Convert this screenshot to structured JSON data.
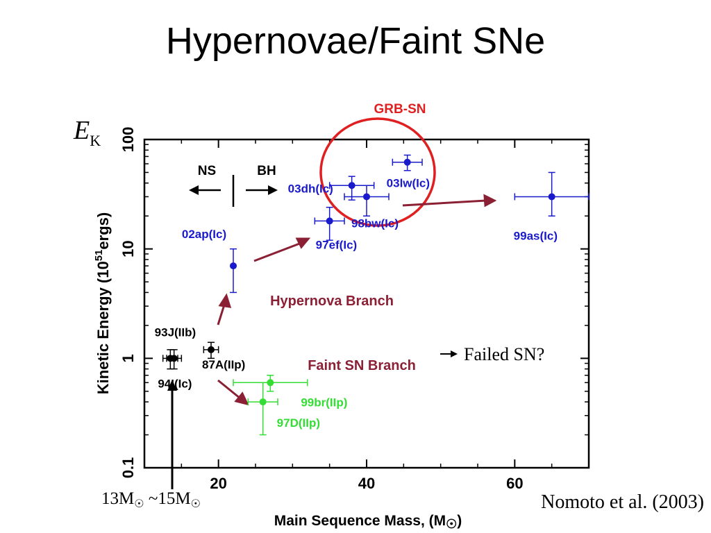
{
  "page": {
    "title": "Hypernovae/Faint SNe",
    "citation": "Nomoto et al. (2003)"
  },
  "chart_data": {
    "type": "scatter",
    "title": "",
    "xlabel": "Main Sequence Mass, (M",
    "xlabel_symbol": "☉",
    "xlabel_close": ")",
    "ylabel": "Kinetic Energy (10",
    "ylabel_exp": "51",
    "ylabel_unit": "ergs)",
    "ylabel_big_E": "E",
    "ylabel_big_sub": "K",
    "xlim": [
      10,
      70
    ],
    "ylim": [
      0.1,
      100
    ],
    "y_scale": "log",
    "x_ticks": [
      "20",
      "40",
      "60"
    ],
    "y_ticks": [
      "0.1",
      "1",
      "10",
      "100"
    ],
    "series": [
      {
        "color": "#1a1acd",
        "points": [
          {
            "label": "02ap(Ic)",
            "x": 22,
            "y": 7,
            "xerr": [
              0,
              0
            ],
            "yerr": [
              3,
              3
            ]
          },
          {
            "label": "97ef(Ic)",
            "x": 35,
            "y": 18,
            "xerr": [
              2,
              2
            ],
            "yerr": [
              6,
              6
            ]
          },
          {
            "label": "03dh(Ic)",
            "x": 38,
            "y": 38,
            "xerr": [
              3,
              3
            ],
            "yerr": [
              10,
              8
            ]
          },
          {
            "label": "98bw(Ic)",
            "x": 40,
            "y": 30,
            "xerr": [
              3,
              3
            ],
            "yerr": [
              10,
              8
            ]
          },
          {
            "label": "03lw(Ic)",
            "x": 45.5,
            "y": 62,
            "xerr": [
              2,
              2
            ],
            "yerr": [
              10,
              10
            ]
          },
          {
            "label": "99as(Ic)",
            "x": 65,
            "y": 30,
            "xerr": [
              5,
              5
            ],
            "yerr": [
              10,
              20
            ]
          }
        ]
      },
      {
        "color": "#000000",
        "points": [
          {
            "label": "94I(Ic)",
            "x": 13.5,
            "y": 1,
            "xerr": [
              1,
              1
            ],
            "yerr": [
              0.2,
              0.2
            ]
          },
          {
            "label": "93J(IIb)",
            "x": 14,
            "y": 1,
            "xerr": [
              1,
              1
            ],
            "yerr": [
              0.2,
              0.2
            ]
          },
          {
            "label": "87A(IIp)",
            "x": 19,
            "y": 1.2,
            "xerr": [
              1,
              1
            ],
            "yerr": [
              0.2,
              0.2
            ]
          }
        ]
      },
      {
        "color": "#33dd33",
        "points": [
          {
            "label": "99br(IIp)",
            "x": 27,
            "y": 0.6,
            "xerr": [
              5,
              5
            ],
            "yerr": [
              0.1,
              0.1
            ]
          },
          {
            "label": "97D(IIp)",
            "x": 26,
            "y": 0.4,
            "xerr": [
              2,
              2
            ],
            "yerr": [
              0.2,
              0.2
            ]
          }
        ]
      }
    ],
    "annotations": {
      "grb_sn": "GRB-SN",
      "ns": "NS",
      "bh": "BH",
      "hypernova_branch": "Hypernova Branch",
      "faint_branch": "Faint SN Branch",
      "failed_sn": "Failed SN?",
      "mass_range": "13M",
      "mass_range_mid": " ~15M",
      "sun_symbol": "☉"
    },
    "colors": {
      "blue": "#1a1acd",
      "green": "#33dd33",
      "red_circle": "#e02020",
      "branch": "#8b2035",
      "grb_text": "#e02020"
    }
  }
}
